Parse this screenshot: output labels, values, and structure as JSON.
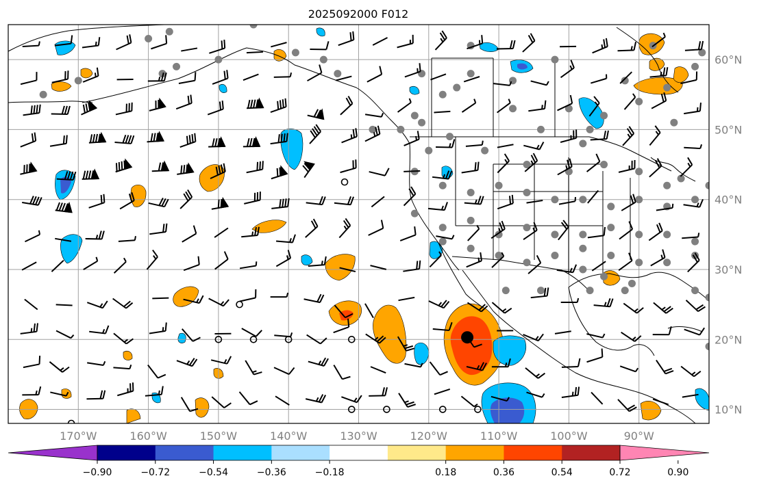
{
  "title": "2025092000 F012",
  "map": {
    "lon_range": [
      -180,
      -80
    ],
    "lat_range": [
      8,
      65
    ],
    "lat_labels": [
      "10°N",
      "20°N",
      "30°N",
      "40°N",
      "50°N",
      "60°N"
    ],
    "lat_values": [
      10,
      20,
      30,
      40,
      50,
      60
    ],
    "lon_labels": [
      "170°W",
      "160°W",
      "150°W",
      "140°W",
      "130°W",
      "120°W",
      "110°W",
      "100°W",
      "90°W"
    ],
    "lon_values": [
      -170,
      -160,
      -150,
      -140,
      -130,
      -120,
      -110,
      -100,
      -90
    ],
    "gridline_color": "#a0a0a0",
    "coastline_color": "#000000",
    "station_marker_color": "#808080",
    "highlight_marker": {
      "lon": -114.5,
      "lat": 20.3,
      "color": "#000000"
    }
  },
  "colorbar": {
    "tick_labels": [
      "−0.90",
      "−0.72",
      "−0.54",
      "−0.36",
      "−0.18",
      "0.18",
      "0.36",
      "0.54",
      "0.72",
      "0.90"
    ],
    "levels": [
      -0.9,
      -0.72,
      -0.54,
      -0.36,
      -0.18,
      0.18,
      0.36,
      0.54,
      0.72,
      0.9
    ],
    "colors": [
      "#9932cc",
      "#00008b",
      "#3a5bd0",
      "#00bfff",
      "#aadfff",
      "#ffffff",
      "#ffe98a",
      "#ffa500",
      "#ff4500",
      "#b22222",
      "#ff85b3"
    ],
    "extend": "both"
  },
  "fields": {
    "positive_color_low": "#ffa500",
    "positive_color_mid": "#ff4500",
    "negative_color_low": "#00bfff",
    "negative_color_mid": "#3a5bd0"
  }
}
